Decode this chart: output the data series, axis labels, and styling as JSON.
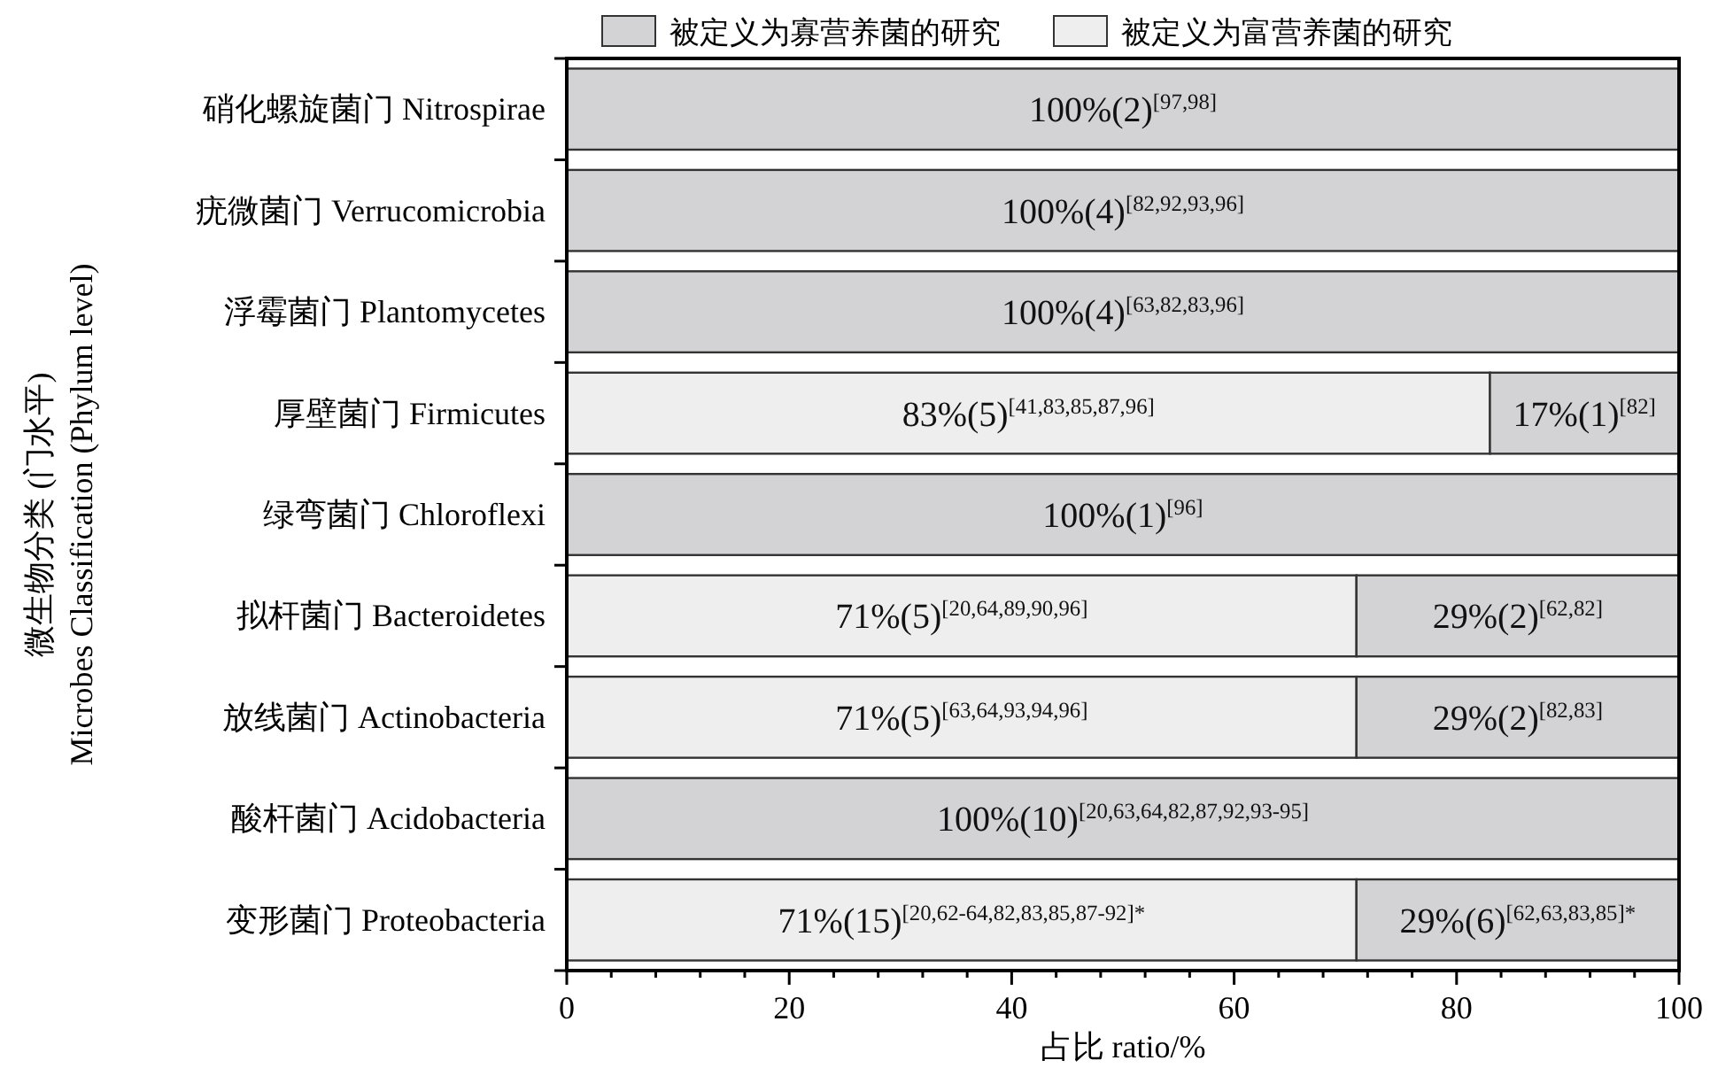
{
  "chart_data": {
    "type": "bar",
    "orientation": "horizontal",
    "stacked": true,
    "legend": "top",
    "xlabel": "占比 ratio/%",
    "ylabel": "微生物分类 (门水平)\nMicrobes Classification (Phylum level)",
    "categories": [
      "硝化螺旋菌门 Nitrospirae",
      "疣微菌门 Verrucomicrobia",
      "浮霉菌门 Plantomycetes",
      "厚壁菌门 Firmicutes",
      "绿弯菌门 Chloroflexi",
      "拟杆菌门 Bacteroidetes",
      "放线菌门 Actinobacteria",
      "酸杆菌门 Acidobacteria",
      "变形菌门 Proteobacteria"
    ],
    "xlim": [
      0,
      100
    ],
    "xticks": [
      0,
      {
        "value": 4,
        "label": null
      },
      {
        "value": 8,
        "label": null
      },
      {
        "value": 12,
        "label": null
      },
      {
        "value": 16,
        "label": null
      },
      20,
      {
        "value": 24,
        "label": null
      },
      {
        "value": 28,
        "label": null
      },
      {
        "value": 32,
        "label": null
      },
      {
        "value": 36,
        "label": null
      },
      40,
      {
        "value": 44,
        "label": null
      },
      {
        "value": 48,
        "label": null
      },
      {
        "value": 52,
        "label": null
      },
      {
        "value": 56,
        "label": null
      },
      60,
      {
        "value": 64,
        "label": null
      },
      {
        "value": 68,
        "label": null
      },
      {
        "value": 72,
        "label": null
      },
      {
        "value": 76,
        "label": null
      },
      80,
      {
        "value": 84,
        "label": null
      },
      {
        "value": 88,
        "label": null
      },
      {
        "value": 92,
        "label": null
      },
      {
        "value": 96,
        "label": null
      },
      100
    ],
    "series": [
      {
        "name": "被定义为富营养菌的研究",
        "color": "#eeeeee",
        "values": [
          null,
          null,
          null,
          83,
          null,
          71,
          71,
          null,
          71
        ],
        "value_labels": [
          null,
          null,
          null,
          "83%(5)$^{[41,83,85,87,96]}$",
          null,
          "71%(5)$^{[20,64,89,90,96]}$",
          "71%(5)$^{[63,64,93,94,96]}$",
          null,
          "71%(15)$^{[20,62-64,82,83,85,87-92]*}$"
        ]
      },
      {
        "name": "被定义为寡营养菌的研究",
        "color": "#d3d3d6",
        "values": [
          100,
          100,
          100,
          17,
          100,
          29,
          29,
          100,
          29
        ],
        "value_labels": [
          "100%(2)$^{[97,98]}$",
          "100%(4)$^{[82,92,93,96]}$",
          "100%(4)$^{[63,82,83,96]}$",
          "17%(1)$^{[82]}$",
          "100%(1)$^{[96]}$",
          "29%(2)$^{[62,82]}$",
          "29%(2)$^{[82,83]}$",
          "100%(10)$^{[20,63,64,82,87,92,93-95]}$",
          "29%(6)$^{[62,63,83,85]*}$"
        ]
      }
    ]
  }
}
